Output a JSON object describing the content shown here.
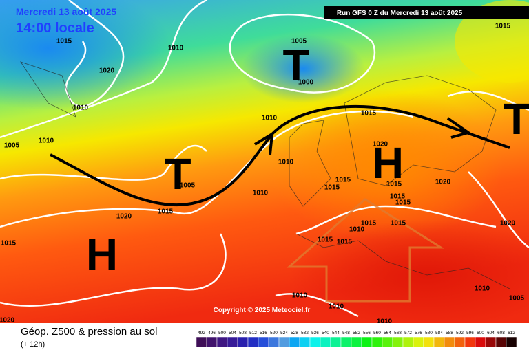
{
  "header": {
    "date": "Mercredi 13 août 2025",
    "time": "14:00 locale",
    "run": "Run GFS 0 Z du Mercredi 13 août 2025"
  },
  "map": {
    "isobar_labels": [
      "1015",
      "1020",
      "1010",
      "1005",
      "1010",
      "1010",
      "1005",
      "1000",
      "1010",
      "1015",
      "1015",
      "1010",
      "1005",
      "1010",
      "1015",
      "1020",
      "1015",
      "1015",
      "1015",
      "1020",
      "1020",
      "1015",
      "1015",
      "1015",
      "1015",
      "1015",
      "1010",
      "1015",
      "1015",
      "1020",
      "1010",
      "1010",
      "1010",
      "1010",
      "1005",
      "1020"
    ],
    "systems": [
      "T",
      "T",
      "H",
      "H",
      "T"
    ],
    "copyright": "Copyright © 2025 Meteociel.fr"
  },
  "footer": {
    "title": "Géop. Z500 & pression au sol",
    "lead": "(+ 12h)",
    "scale_labels": [
      "492",
      "496",
      "500",
      "504",
      "508",
      "512",
      "516",
      "520",
      "524",
      "528",
      "532",
      "536",
      "540",
      "544",
      "548",
      "552",
      "556",
      "560",
      "564",
      "568",
      "572",
      "576",
      "580",
      "584",
      "588",
      "592",
      "596",
      "600",
      "604",
      "608",
      "612"
    ]
  }
}
